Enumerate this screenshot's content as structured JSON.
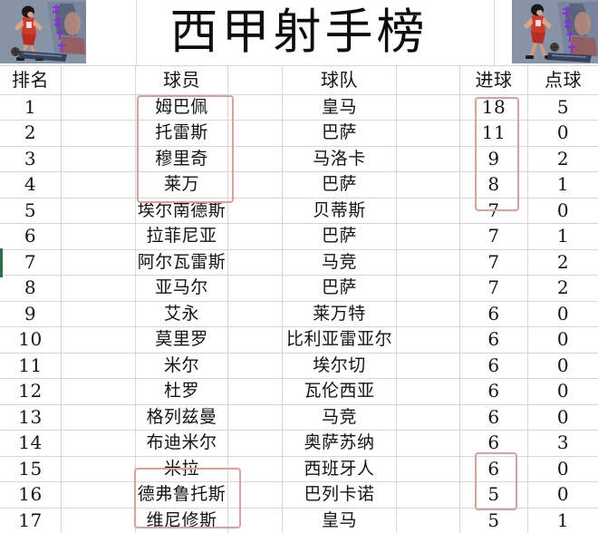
{
  "title": "西甲射手榜",
  "columns": [
    "排名",
    "球员",
    "球队",
    "进球",
    "点球"
  ],
  "rows": [
    {
      "rank": "1",
      "player": "姆巴佩",
      "team": "皇马",
      "goals": "18",
      "penalties": "5"
    },
    {
      "rank": "2",
      "player": "托雷斯",
      "team": "巴萨",
      "goals": "11",
      "penalties": "0"
    },
    {
      "rank": "3",
      "player": "穆里奇",
      "team": "马洛卡",
      "goals": "9",
      "penalties": "2"
    },
    {
      "rank": "4",
      "player": "莱万",
      "team": "巴萨",
      "goals": "8",
      "penalties": "1"
    },
    {
      "rank": "5",
      "player": "埃尔南德斯",
      "team": "贝蒂斯",
      "goals": "7",
      "penalties": "0"
    },
    {
      "rank": "6",
      "player": "拉菲尼亚",
      "team": "巴萨",
      "goals": "7",
      "penalties": "1"
    },
    {
      "rank": "7",
      "player": "阿尔瓦雷斯",
      "team": "马竞",
      "goals": "7",
      "penalties": "2"
    },
    {
      "rank": "8",
      "player": "亚马尔",
      "team": "巴萨",
      "goals": "7",
      "penalties": "2"
    },
    {
      "rank": "9",
      "player": "艾永",
      "team": "莱万特",
      "goals": "6",
      "penalties": "0"
    },
    {
      "rank": "10",
      "player": "莫里罗",
      "team": "比利亚雷亚尔",
      "goals": "6",
      "penalties": "0"
    },
    {
      "rank": "11",
      "player": "米尔",
      "team": "埃尔切",
      "goals": "6",
      "penalties": "0"
    },
    {
      "rank": "12",
      "player": "杜罗",
      "team": "瓦伦西亚",
      "goals": "6",
      "penalties": "0"
    },
    {
      "rank": "13",
      "player": "格列兹曼",
      "team": "马竞",
      "goals": "6",
      "penalties": "0"
    },
    {
      "rank": "14",
      "player": "布迪米尔",
      "team": "奥萨苏纳",
      "goals": "6",
      "penalties": "3"
    },
    {
      "rank": "15",
      "player": "米拉",
      "team": "西班牙人",
      "goals": "6",
      "penalties": "0"
    },
    {
      "rank": "16",
      "player": "德弗鲁托斯",
      "team": "巴列卡诺",
      "goals": "5",
      "penalties": "0"
    },
    {
      "rank": "17",
      "player": "维尼修斯",
      "team": "皇马",
      "goals": "5",
      "penalties": "1"
    }
  ],
  "highlights": [
    {
      "name": "top-player-names",
      "rows": "1-4",
      "column": "球员",
      "color": "#e49c9c"
    },
    {
      "name": "top-goal-counts",
      "rows": "1-4",
      "column": "进球",
      "color": "#e49c9c"
    },
    {
      "name": "lower-player-names",
      "rows": "16-17",
      "column": "球员",
      "color": "#e49c9c"
    },
    {
      "name": "lower-goal-counts",
      "rows": "15-16",
      "column": "进球",
      "color": "#e49c9c"
    }
  ],
  "colors": {
    "highlight_border": "#e49c9c",
    "gridline": "#d6d6d6",
    "text": "#141414",
    "green_edge_mark": "#27714a",
    "image_background": "#8694a6",
    "jersey_red": "#d43828",
    "watermark_purple": "#8a2be2"
  },
  "chart_data": {
    "type": "table",
    "title": "西甲射手榜",
    "columns": [
      "排名",
      "球员",
      "球队",
      "进球",
      "点球"
    ],
    "rows": [
      [
        "1",
        "姆巴佩",
        "皇马",
        18,
        5
      ],
      [
        "2",
        "托雷斯",
        "巴萨",
        11,
        0
      ],
      [
        "3",
        "穆里奇",
        "马洛卡",
        9,
        2
      ],
      [
        "4",
        "莱万",
        "巴萨",
        8,
        1
      ],
      [
        "5",
        "埃尔南德斯",
        "贝蒂斯",
        7,
        0
      ],
      [
        "6",
        "拉菲尼亚",
        "巴萨",
        7,
        1
      ],
      [
        "7",
        "阿尔瓦雷斯",
        "马竞",
        7,
        2
      ],
      [
        "8",
        "亚马尔",
        "巴萨",
        7,
        2
      ],
      [
        "9",
        "艾永",
        "莱万特",
        6,
        0
      ],
      [
        "10",
        "莫里罗",
        "比利亚雷亚尔",
        6,
        0
      ],
      [
        "11",
        "米尔",
        "埃尔切",
        6,
        0
      ],
      [
        "12",
        "杜罗",
        "瓦伦西亚",
        6,
        0
      ],
      [
        "13",
        "格列兹曼",
        "马竞",
        6,
        0
      ],
      [
        "14",
        "布迪米尔",
        "奥萨苏纳",
        6,
        3
      ],
      [
        "15",
        "米拉",
        "西班牙人",
        6,
        0
      ],
      [
        "16",
        "德弗鲁托斯",
        "巴列卡诺",
        5,
        0
      ],
      [
        "17",
        "维尼修斯",
        "皇马",
        5,
        1
      ]
    ]
  }
}
